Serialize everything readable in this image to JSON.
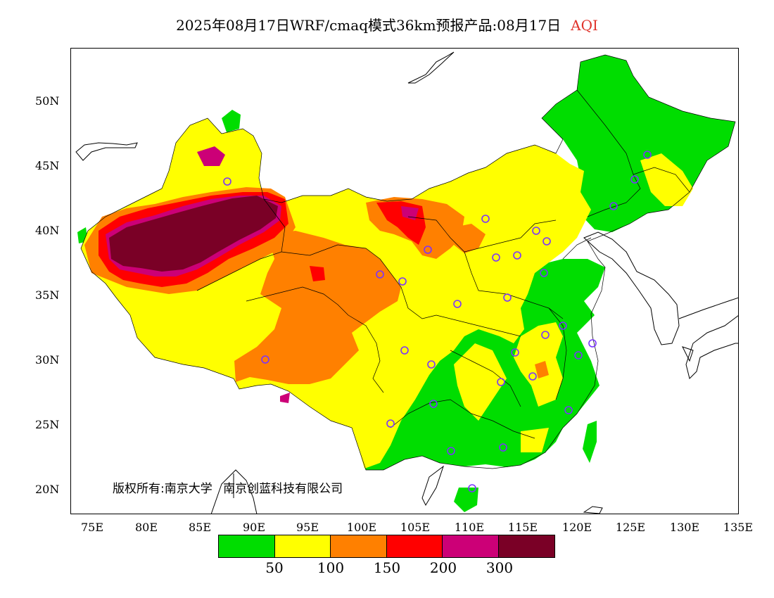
{
  "title": {
    "main": "2025年08月17日WRF/cmaq模式36km预报产品:08月17日",
    "product": "AQI"
  },
  "axes": {
    "y_labels": [
      "50N",
      "45N",
      "40N",
      "35N",
      "30N",
      "25N",
      "20N"
    ],
    "x_labels": [
      "75E",
      "80E",
      "85E",
      "90E",
      "95E",
      "100E",
      "105E",
      "110E",
      "115E",
      "120E",
      "125E",
      "130E",
      "135E"
    ],
    "lon_range": [
      73,
      135
    ],
    "lat_range": [
      18,
      54
    ]
  },
  "copyright": {
    "text1": "版权所有:南京大学",
    "text2": "南京创蓝科技有限公司"
  },
  "legend": {
    "colors": [
      "#00dd00",
      "#ffff00",
      "#ff8000",
      "#ff0000",
      "#cc0077",
      "#7a0026"
    ],
    "labels": [
      "50",
      "100",
      "150",
      "200",
      "300"
    ]
  },
  "colors": {
    "good": "#00dd00",
    "moderate": "#ffff00",
    "sensitive": "#ff8000",
    "unhealthy": "#ff0000",
    "very_unhealthy": "#cc0077",
    "hazardous": "#7a0026",
    "station_marker": "#7a33ff"
  }
}
